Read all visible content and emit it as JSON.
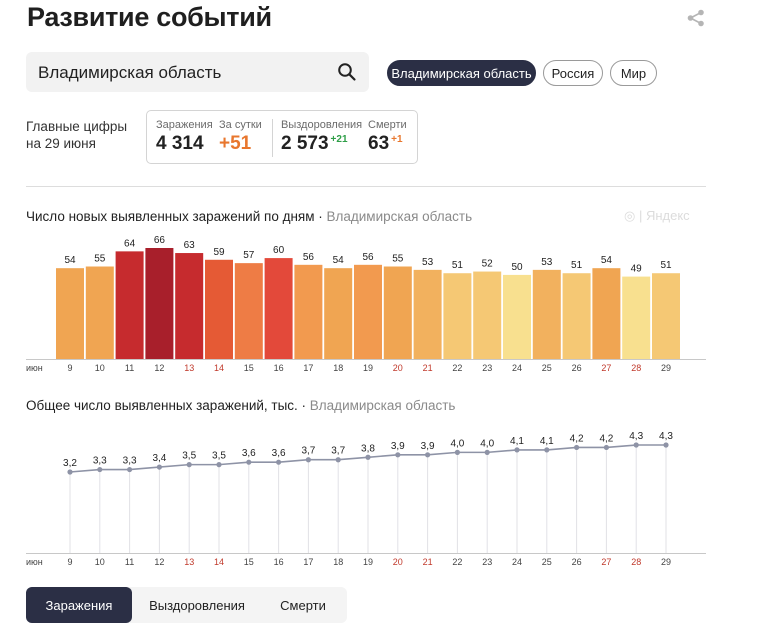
{
  "header": {
    "title": "Развитие событий",
    "share_icon": "share-icon"
  },
  "search": {
    "value": "Владимирская область",
    "icon": "search-icon"
  },
  "region_pills": [
    "Владимирская область",
    "Россия",
    "Мир"
  ],
  "summary": {
    "label_line1": "Главные цифры",
    "label_line2": "на 29 июня",
    "infections_label": "Заражения",
    "infections_value": "4 314",
    "daily_label": "За сутки",
    "daily_value": "+51",
    "recovered_label": "Выздоровления",
    "recovered_value": "2 573",
    "recovered_delta": "+21",
    "deaths_label": "Смерти",
    "deaths_value": "63",
    "deaths_delta": "+1"
  },
  "watermark": "Яндекс",
  "colors": {
    "accent_dark": "#2b2f45",
    "daily_orange": "#e8772e",
    "recovered_green": "#2e9e47",
    "weekend_red": "#c0392b",
    "line_gray": "#8e93a6"
  },
  "chart_data": [
    {
      "type": "bar",
      "title": "Число новых выявленных заражений по дням",
      "subtitle": "Владимирская область",
      "x_prefix": "июн",
      "categories": [
        "9",
        "10",
        "11",
        "12",
        "13",
        "14",
        "15",
        "16",
        "17",
        "18",
        "19",
        "20",
        "21",
        "22",
        "23",
        "24",
        "25",
        "26",
        "27",
        "28",
        "29"
      ],
      "weekend_categories": [
        "13",
        "14",
        "20",
        "21",
        "27",
        "28"
      ],
      "values": [
        54,
        55,
        64,
        66,
        63,
        59,
        57,
        60,
        56,
        54,
        56,
        55,
        53,
        51,
        52,
        50,
        53,
        51,
        54,
        49,
        51
      ],
      "bar_colors": [
        "#f0a552",
        "#f0a552",
        "#c62b2e",
        "#a81f2b",
        "#c62b2e",
        "#e55a35",
        "#ee7c45",
        "#e3493a",
        "#f29a4f",
        "#f0a552",
        "#f29a4f",
        "#f0a552",
        "#f2b15e",
        "#f5c874",
        "#f5c874",
        "#f8e08f",
        "#f2b15e",
        "#f5c874",
        "#f0a552",
        "#f8e08f",
        "#f5c874"
      ],
      "ylim": [
        0,
        66
      ]
    },
    {
      "type": "line",
      "title": "Общее число выявленных заражений, тыс.",
      "subtitle": "Владимирская область",
      "x_prefix": "июн",
      "categories": [
        "9",
        "10",
        "11",
        "12",
        "13",
        "14",
        "15",
        "16",
        "17",
        "18",
        "19",
        "20",
        "21",
        "22",
        "23",
        "24",
        "25",
        "26",
        "27",
        "28",
        "29"
      ],
      "weekend_categories": [
        "13",
        "14",
        "20",
        "21",
        "27",
        "28"
      ],
      "values": [
        3.2,
        3.3,
        3.3,
        3.4,
        3.5,
        3.5,
        3.6,
        3.6,
        3.7,
        3.7,
        3.8,
        3.9,
        3.9,
        4.0,
        4.0,
        4.1,
        4.1,
        4.2,
        4.2,
        4.3,
        4.3
      ],
      "labels": [
        "3,2",
        "3,3",
        "3,3",
        "3,4",
        "3,5",
        "3,5",
        "3,6",
        "3,6",
        "3,7",
        "3,7",
        "3,8",
        "3,9",
        "3,9",
        "4,0",
        "4,0",
        "4,1",
        "4,1",
        "4,2",
        "4,2",
        "4,3",
        "4,3"
      ]
    }
  ],
  "bottom_tabs": [
    "Заражения",
    "Выздоровления",
    "Смерти"
  ]
}
